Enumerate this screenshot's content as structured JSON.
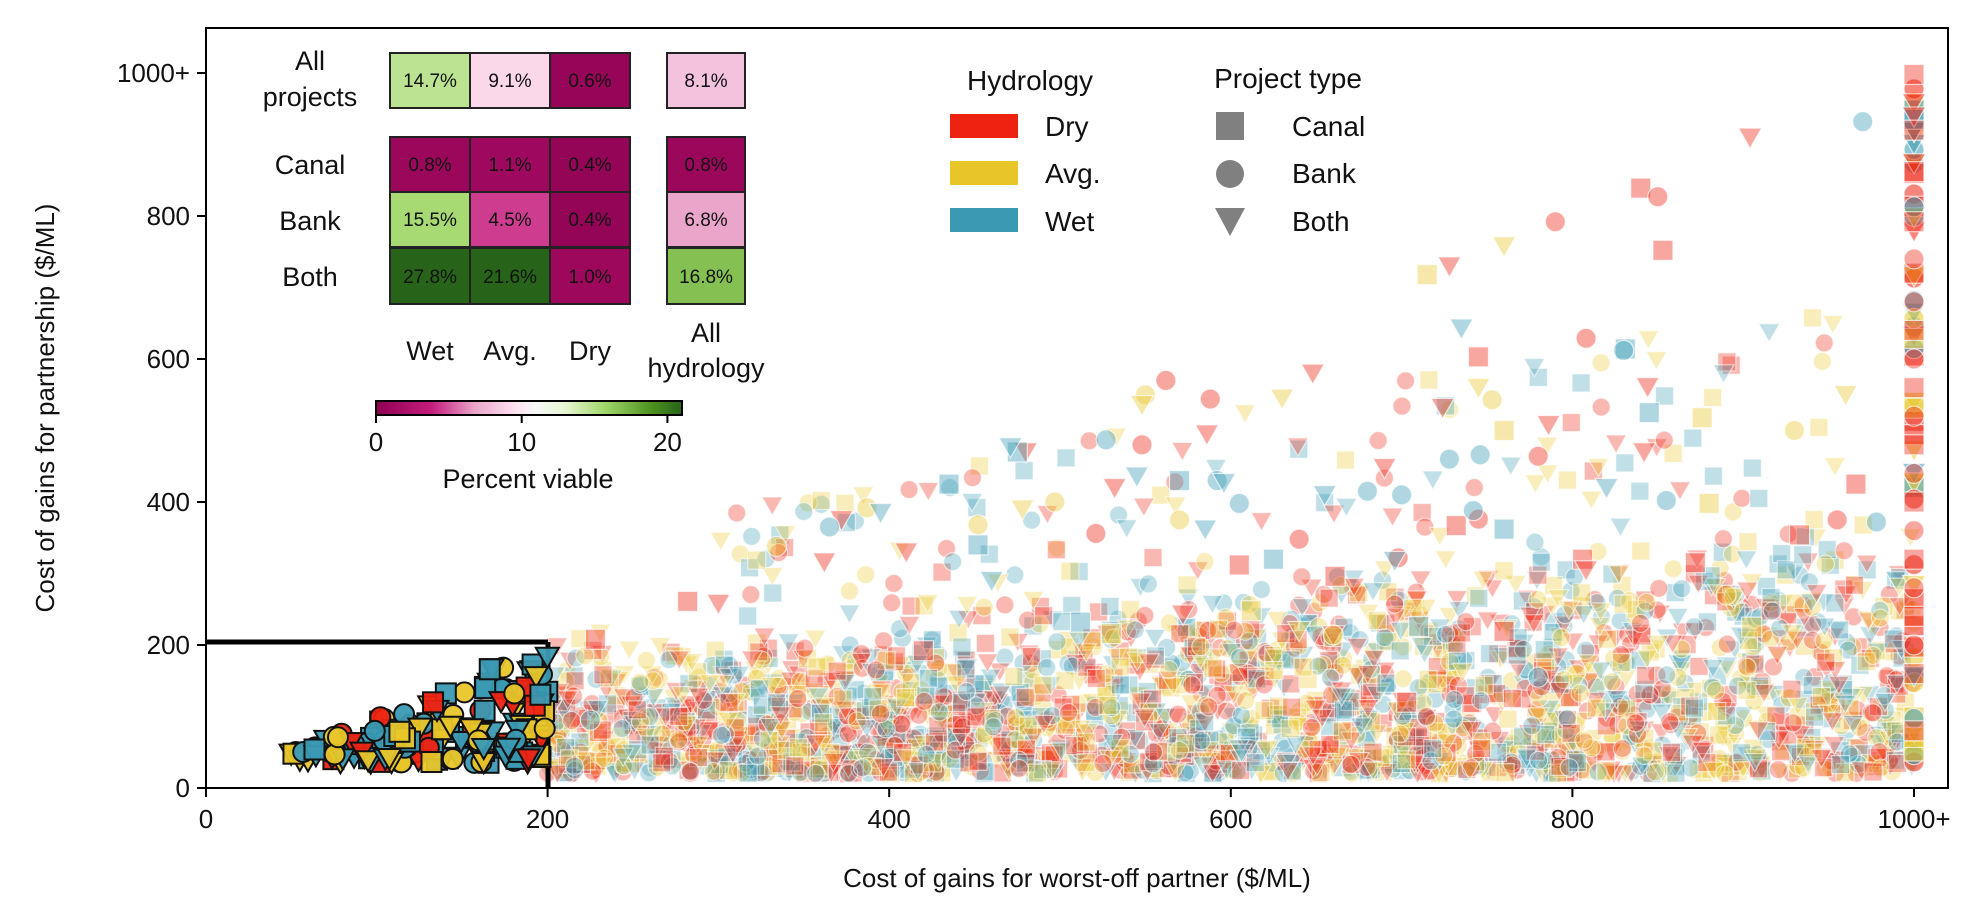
{
  "chart_data": {
    "type": "scatter",
    "xlabel": "Cost of gains for worst-off partner ($/ML)",
    "ylabel": "Cost of gains for partnership ($/ML)",
    "xlim": [
      0,
      1000
    ],
    "ylim": [
      0,
      1000
    ],
    "x_ticks": [
      "0",
      "200",
      "400",
      "600",
      "800",
      "1000+"
    ],
    "y_ticks": [
      "0",
      "200",
      "400",
      "600",
      "800",
      "1000+"
    ],
    "threshold": {
      "x": 200,
      "y": 200
    },
    "hydrology_legend": {
      "title": "Hydrology",
      "items": [
        {
          "label": "Dry",
          "color": "#ee2211"
        },
        {
          "label": "Avg.",
          "color": "#e8c62a"
        },
        {
          "label": "Wet",
          "color": "#3a9ab3"
        }
      ]
    },
    "project_legend": {
      "title": "Project type",
      "items": [
        {
          "label": "Canal",
          "marker": "square"
        },
        {
          "label": "Bank",
          "marker": "circle"
        },
        {
          "label": "Both",
          "marker": "triangle-down"
        }
      ]
    },
    "heatmap": {
      "columns": [
        "Wet",
        "Avg.",
        "Dry"
      ],
      "all_column_label": [
        "All",
        "hydrology"
      ],
      "all_row_label": [
        "All",
        "projects"
      ],
      "rows": [
        "Canal",
        "Bank",
        "Both"
      ],
      "all_projects": [
        14.7,
        9.1,
        0.6
      ],
      "all_projects_all_hydrology": 8.1,
      "cells": [
        [
          0.8,
          1.1,
          0.4
        ],
        [
          15.5,
          4.5,
          0.4
        ],
        [
          27.8,
          21.6,
          1.0
        ]
      ],
      "all_hydrology": [
        0.8,
        6.8,
        16.8
      ],
      "colorbar_label": "Percent viable",
      "colorbar_ticks": [
        "0",
        "10",
        "20"
      ],
      "colorbar_range": [
        0,
        21
      ]
    },
    "series": [
      {
        "hydrology": "Dry",
        "project": "Canal",
        "points": [
          [
            732,
            367
          ],
          [
            745,
            603
          ],
          [
            806,
            320
          ],
          [
            840,
            839
          ],
          [
            853,
            752
          ],
          [
            872,
            315
          ],
          [
            966,
            425
          ],
          [
            1000,
            998
          ],
          [
            1000,
            920
          ],
          [
            1000,
            862
          ],
          [
            1000,
            792
          ],
          [
            1000,
            720
          ],
          [
            1000,
            640
          ],
          [
            1000,
            560
          ],
          [
            1000,
            480
          ],
          [
            1000,
            400
          ],
          [
            1000,
            320
          ],
          [
            1000,
            240
          ],
          [
            1000,
            160
          ],
          [
            1000,
            80
          ],
          [
            228,
            208
          ],
          [
            282,
            261
          ],
          [
            420,
            192
          ],
          [
            605,
            312
          ],
          [
            661,
            296
          ],
          [
            703,
            120
          ],
          [
            760,
            219
          ],
          [
            933,
            354
          ]
        ]
      },
      {
        "hydrology": "Dry",
        "project": "Bank",
        "points": [
          [
            562,
            570
          ],
          [
            588,
            544
          ],
          [
            790,
            792
          ],
          [
            808,
            629
          ],
          [
            850,
            827
          ],
          [
            745,
            376
          ],
          [
            548,
            480
          ],
          [
            521,
            356
          ],
          [
            640,
            348
          ],
          [
            698,
            322
          ],
          [
            955,
            375
          ],
          [
            780,
            464
          ],
          [
            1000,
            740
          ],
          [
            1000,
            680
          ],
          [
            1000,
            600
          ],
          [
            1000,
            520
          ],
          [
            1000,
            440
          ],
          [
            1000,
            360
          ],
          [
            1000,
            280
          ],
          [
            1000,
            200
          ]
        ]
      },
      {
        "hydrology": "Dry",
        "project": "Both",
        "points": [
          [
            648,
            580
          ],
          [
            724,
            532
          ],
          [
            844,
            561
          ],
          [
            904,
            910
          ],
          [
            728,
            730
          ],
          [
            786,
            508
          ],
          [
            532,
            420
          ],
          [
            586,
            495
          ],
          [
            410,
            330
          ],
          [
            372,
            375
          ],
          [
            480,
            470
          ],
          [
            842,
            470
          ],
          [
            690,
            448
          ],
          [
            660,
            214
          ],
          [
            300,
            258
          ],
          [
            362,
            316
          ],
          [
            572,
            243
          ],
          [
            808,
            305
          ]
        ]
      },
      {
        "hydrology": "Avg.",
        "project": "Canal",
        "points": [
          [
            715,
            718
          ],
          [
            876,
            518
          ],
          [
            880,
            398
          ],
          [
            905,
            225
          ],
          [
            760,
            500
          ],
          [
            612,
            248
          ],
          [
            530,
            216
          ]
        ]
      },
      {
        "hydrology": "Avg.",
        "project": "Bank",
        "points": [
          [
            930,
            500
          ],
          [
            550,
            550
          ],
          [
            753,
            543
          ],
          [
            387,
            392
          ],
          [
            660,
            214
          ],
          [
            452,
            368
          ],
          [
            497,
            400
          ],
          [
            570,
            375
          ],
          [
            334,
            338
          ],
          [
            890,
            270
          ]
        ]
      },
      {
        "hydrology": "Avg.",
        "project": "Both",
        "points": [
          [
            760,
            758
          ],
          [
            630,
            545
          ],
          [
            960,
            550
          ],
          [
            745,
            560
          ],
          [
            478,
            390
          ],
          [
            640,
            220
          ],
          [
            548,
            536
          ]
        ]
      },
      {
        "hydrology": "Wet",
        "project": "Canal",
        "points": [
          [
            435,
            425
          ],
          [
            475,
            470
          ],
          [
            570,
            430
          ],
          [
            831,
            614
          ],
          [
            845,
            525
          ],
          [
            760,
            362
          ],
          [
            710,
            226
          ],
          [
            512,
            232
          ],
          [
            452,
            340
          ],
          [
            625,
            320
          ]
        ]
      },
      {
        "hydrology": "Wet",
        "project": "Bank",
        "points": [
          [
            970,
            932
          ],
          [
            527,
            487
          ],
          [
            830,
            612
          ],
          [
            728,
            460
          ],
          [
            746,
            466
          ],
          [
            855,
            402
          ],
          [
            592,
            430
          ],
          [
            605,
            398
          ],
          [
            680,
            415
          ],
          [
            742,
            388
          ],
          [
            780,
            155
          ],
          [
            225,
            95
          ],
          [
            365,
            365
          ],
          [
            978,
            372
          ],
          [
            700,
            410
          ]
        ]
      },
      {
        "hydrology": "Wet",
        "project": "Both",
        "points": [
          [
            735,
            643
          ],
          [
            471,
            477
          ],
          [
            545,
            436
          ],
          [
            596,
            427
          ],
          [
            696,
            318
          ],
          [
            585,
            362
          ],
          [
            460,
            290
          ],
          [
            820,
            420
          ],
          [
            395,
            385
          ],
          [
            655,
            410
          ]
        ]
      }
    ],
    "cloud_counts": {
      "dense_band": 2600,
      "upper_scatter": 150,
      "right_column": 60,
      "highlighted": 170
    }
  }
}
